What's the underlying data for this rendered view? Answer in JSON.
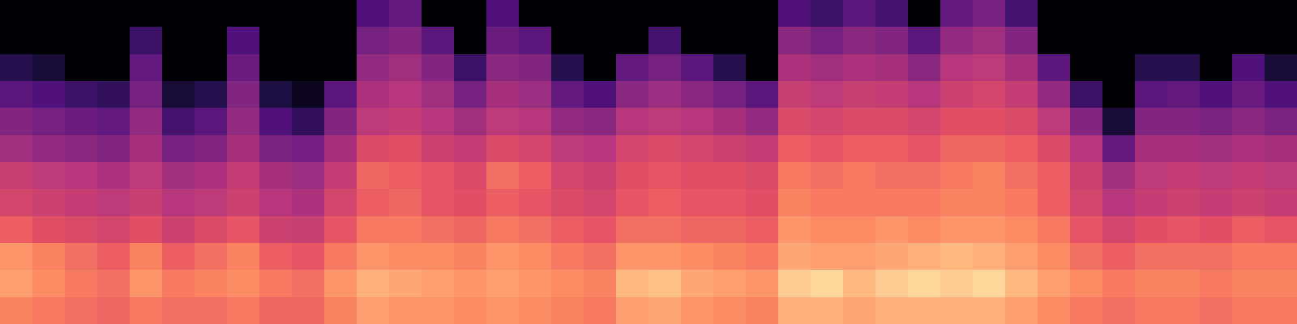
{
  "chart_data": {
    "type": "heatmap",
    "zlim": [
      0,
      100
    ],
    "cells": [
      [
        0,
        0,
        0,
        0,
        0,
        0,
        0,
        0,
        0,
        0,
        0,
        25,
        30,
        0,
        0,
        25,
        0,
        0,
        0,
        0,
        0,
        0,
        0,
        0,
        25,
        20,
        28,
        22,
        0,
        30,
        35,
        22,
        0,
        0,
        0,
        0,
        0,
        0,
        0,
        0
      ],
      [
        0,
        0,
        0,
        0,
        20,
        0,
        0,
        25,
        0,
        0,
        0,
        35,
        38,
        28,
        0,
        32,
        28,
        0,
        0,
        0,
        22,
        0,
        0,
        0,
        40,
        35,
        40,
        38,
        28,
        42,
        45,
        38,
        0,
        0,
        0,
        0,
        0,
        0,
        0,
        0
      ],
      [
        15,
        10,
        0,
        0,
        30,
        0,
        0,
        32,
        0,
        0,
        0,
        42,
        45,
        38,
        20,
        40,
        38,
        15,
        0,
        30,
        35,
        28,
        15,
        0,
        48,
        45,
        48,
        46,
        40,
        50,
        52,
        46,
        28,
        0,
        0,
        15,
        15,
        0,
        25,
        10
      ],
      [
        28,
        25,
        20,
        18,
        35,
        10,
        15,
        38,
        12,
        5,
        28,
        48,
        50,
        45,
        35,
        46,
        44,
        30,
        25,
        40,
        44,
        40,
        35,
        28,
        55,
        52,
        55,
        54,
        50,
        56,
        58,
        54,
        42,
        20,
        0,
        28,
        30,
        25,
        32,
        25
      ],
      [
        38,
        35,
        32,
        30,
        42,
        22,
        28,
        42,
        25,
        18,
        38,
        52,
        54,
        50,
        45,
        52,
        50,
        42,
        40,
        50,
        52,
        50,
        46,
        42,
        60,
        58,
        60,
        60,
        58,
        62,
        62,
        60,
        52,
        38,
        10,
        38,
        38,
        36,
        40,
        36
      ],
      [
        45,
        42,
        40,
        38,
        46,
        35,
        38,
        46,
        36,
        34,
        46,
        60,
        62,
        56,
        54,
        60,
        58,
        52,
        50,
        58,
        60,
        58,
        56,
        54,
        66,
        64,
        66,
        66,
        64,
        68,
        68,
        66,
        60,
        50,
        30,
        46,
        46,
        45,
        48,
        46
      ],
      [
        55,
        52,
        50,
        48,
        52,
        45,
        48,
        54,
        46,
        44,
        54,
        68,
        66,
        64,
        60,
        70,
        66,
        58,
        56,
        62,
        64,
        62,
        62,
        60,
        72,
        70,
        72,
        70,
        70,
        72,
        74,
        70,
        66,
        56,
        45,
        52,
        54,
        52,
        54,
        52
      ],
      [
        58,
        56,
        54,
        52,
        55,
        50,
        52,
        56,
        50,
        48,
        58,
        66,
        68,
        64,
        62,
        66,
        64,
        60,
        58,
        64,
        66,
        64,
        64,
        62,
        74,
        72,
        72,
        72,
        72,
        74,
        74,
        72,
        66,
        58,
        50,
        54,
        56,
        54,
        56,
        54
      ],
      [
        66,
        62,
        60,
        58,
        62,
        56,
        60,
        64,
        56,
        55,
        64,
        72,
        72,
        70,
        68,
        72,
        70,
        66,
        64,
        70,
        70,
        68,
        68,
        66,
        78,
        76,
        76,
        78,
        76,
        78,
        78,
        76,
        72,
        64,
        58,
        62,
        64,
        62,
        66,
        64
      ],
      [
        78,
        74,
        70,
        66,
        74,
        66,
        70,
        74,
        66,
        64,
        72,
        78,
        76,
        76,
        74,
        78,
        76,
        72,
        70,
        78,
        78,
        76,
        74,
        72,
        82,
        80,
        80,
        82,
        84,
        86,
        84,
        80,
        76,
        70,
        66,
        70,
        70,
        70,
        72,
        72
      ],
      [
        80,
        76,
        72,
        70,
        78,
        72,
        74,
        76,
        72,
        70,
        78,
        84,
        82,
        80,
        78,
        80,
        78,
        76,
        74,
        86,
        88,
        82,
        80,
        78,
        90,
        92,
        86,
        90,
        92,
        90,
        92,
        86,
        80,
        76,
        72,
        74,
        74,
        72,
        74,
        74
      ],
      [
        74,
        72,
        70,
        68,
        72,
        70,
        70,
        72,
        68,
        68,
        74,
        80,
        78,
        78,
        76,
        78,
        76,
        74,
        72,
        80,
        82,
        78,
        76,
        74,
        84,
        84,
        82,
        84,
        84,
        84,
        84,
        80,
        76,
        72,
        70,
        72,
        72,
        70,
        72,
        72
      ]
    ]
  }
}
